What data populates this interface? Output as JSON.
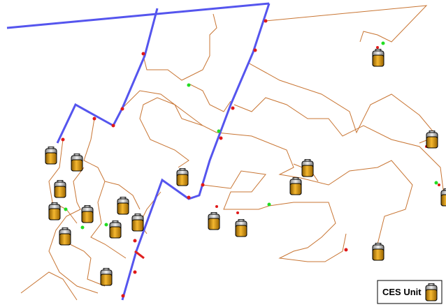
{
  "legend": {
    "label": "CES Unit"
  }
}
